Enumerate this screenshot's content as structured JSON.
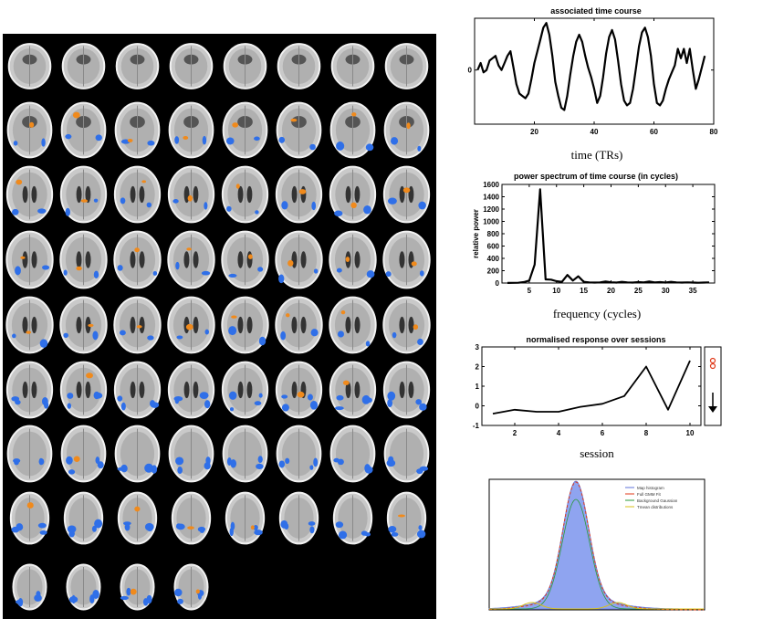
{
  "charts": {
    "timecourse": {
      "title": "associated time course",
      "xlabel": "time (TRs)",
      "ylabel": ""
    },
    "power": {
      "title": "power spectrum of time course (in cycles)",
      "xlabel": "frequency (cycles)",
      "ylabel": "relative power"
    },
    "sessions": {
      "title": "normalised response over sessions",
      "xlabel": "session",
      "ylabel": ""
    },
    "histogram": {
      "title": "",
      "legend": [
        "Map histogram",
        "Full GMM Fit",
        "Background Gaussian",
        "Tmean distributions"
      ]
    }
  },
  "chart_data": [
    {
      "type": "line",
      "title": "associated time course",
      "xlabel": "time (TRs)",
      "xlim": [
        0,
        80
      ],
      "xticks": [
        20,
        40,
        60,
        80
      ],
      "yticks": [
        0
      ],
      "ylim": [
        -2.3,
        2.2
      ],
      "x": [
        1,
        2,
        3,
        4,
        5,
        6,
        7,
        8,
        9,
        10,
        11,
        12,
        13,
        14,
        15,
        16,
        17,
        18,
        19,
        20,
        21,
        22,
        23,
        24,
        25,
        26,
        27,
        28,
        29,
        30,
        31,
        32,
        33,
        34,
        35,
        36,
        37,
        38,
        39,
        40,
        41,
        42,
        43,
        44,
        45,
        46,
        47,
        48,
        49,
        50,
        51,
        52,
        53,
        54,
        55,
        56,
        57,
        58,
        59,
        60,
        61,
        62,
        63,
        64,
        65,
        66,
        67,
        68,
        69,
        70,
        71,
        72,
        73,
        74,
        75,
        76,
        77
      ],
      "series": [
        {
          "values": [
            0.0,
            0.3,
            -0.1,
            0.0,
            0.4,
            0.5,
            0.6,
            0.2,
            0.0,
            0.3,
            0.6,
            0.8,
            0.1,
            -0.6,
            -1.0,
            -1.1,
            -1.2,
            -1.0,
            -0.4,
            0.3,
            0.8,
            1.3,
            1.8,
            2.0,
            1.5,
            0.6,
            -0.5,
            -1.1,
            -1.6,
            -1.7,
            -1.1,
            -0.2,
            0.6,
            1.2,
            1.5,
            1.2,
            0.6,
            0.1,
            -0.3,
            -0.8,
            -1.4,
            -1.1,
            -0.3,
            0.7,
            1.4,
            1.7,
            1.3,
            0.4,
            -0.6,
            -1.3,
            -1.5,
            -1.4,
            -0.8,
            0.1,
            1.0,
            1.6,
            1.8,
            1.4,
            0.6,
            -0.6,
            -1.4,
            -1.5,
            -1.3,
            -0.8,
            -0.4,
            -0.1,
            0.2,
            0.9,
            0.5,
            0.9,
            0.3,
            0.9,
            0.0,
            -0.8,
            -0.4,
            0.1,
            0.6
          ]
        }
      ]
    },
    {
      "type": "line",
      "title": "power spectrum of time course (in cycles)",
      "xlabel": "frequency (cycles)",
      "ylabel": "relative power",
      "xlim": [
        0,
        39
      ],
      "ylim": [
        0,
        1600
      ],
      "xticks": [
        5,
        10,
        15,
        20,
        25,
        30,
        35
      ],
      "yticks": [
        0,
        200,
        400,
        600,
        800,
        1000,
        1200,
        1400,
        1600
      ],
      "x": [
        1,
        2,
        3,
        4,
        5,
        6,
        7,
        8,
        9,
        10,
        11,
        12,
        13,
        14,
        15,
        16,
        17,
        18,
        19,
        20,
        21,
        22,
        23,
        24,
        25,
        26,
        27,
        28,
        29,
        30,
        31,
        32,
        33,
        34,
        35,
        36,
        37,
        38
      ],
      "series": [
        {
          "values": [
            2,
            3,
            5,
            15,
            40,
            300,
            1520,
            60,
            55,
            30,
            20,
            130,
            40,
            110,
            20,
            10,
            8,
            10,
            25,
            12,
            8,
            20,
            10,
            8,
            15,
            10,
            25,
            10,
            15,
            8,
            20,
            10,
            8,
            10,
            8,
            5,
            8,
            10
          ]
        }
      ]
    },
    {
      "type": "line",
      "title": "normalised response over sessions",
      "xlabel": "session",
      "xlim": [
        0.5,
        10.5
      ],
      "ylim": [
        -1,
        3
      ],
      "xticks": [
        2,
        4,
        6,
        8,
        10
      ],
      "yticks": [
        -1,
        0,
        1,
        2,
        3
      ],
      "x": [
        1,
        2,
        3,
        4,
        5,
        6,
        7,
        8,
        9,
        10
      ],
      "series": [
        {
          "values": [
            -0.4,
            -0.2,
            -0.3,
            -0.3,
            -0.05,
            0.1,
            0.5,
            2.0,
            -0.2,
            2.3
          ]
        }
      ]
    }
  ]
}
